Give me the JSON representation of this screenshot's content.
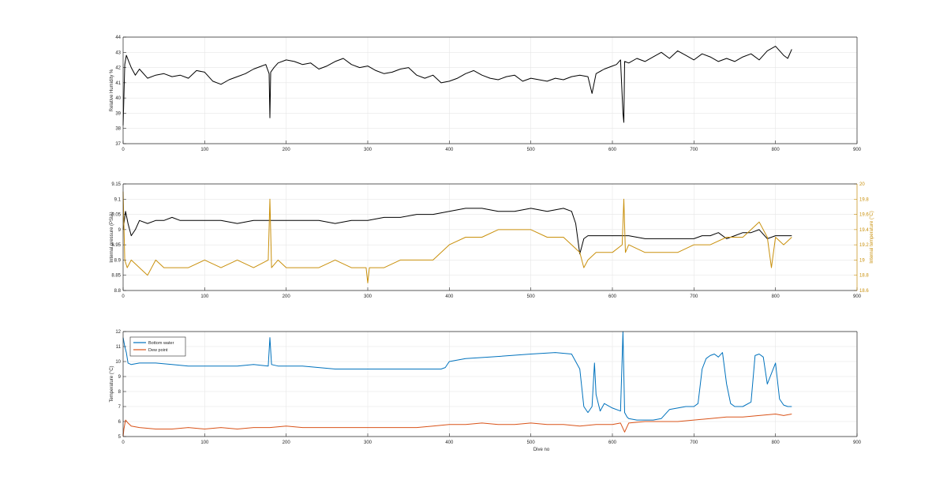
{
  "chart_data": [
    {
      "type": "line",
      "title": "",
      "xlabel": "",
      "ylabel": "Relative Humidity %",
      "xlim": [
        0,
        900
      ],
      "ylim": [
        37,
        44
      ],
      "xticks": [
        "0",
        "100",
        "200",
        "300",
        "400",
        "500",
        "600",
        "700",
        "800",
        "900"
      ],
      "yticks": [
        "37",
        "38",
        "39",
        "40",
        "41",
        "42",
        "43",
        "44"
      ],
      "grid": true,
      "series": [
        {
          "color": "#000000",
          "x": [
            0,
            2,
            4,
            7,
            10,
            15,
            20,
            30,
            40,
            50,
            60,
            70,
            80,
            90,
            100,
            110,
            120,
            130,
            140,
            150,
            160,
            170,
            175,
            179,
            180,
            181,
            185,
            190,
            200,
            210,
            220,
            230,
            240,
            250,
            260,
            270,
            280,
            290,
            300,
            310,
            320,
            330,
            340,
            350,
            360,
            370,
            380,
            390,
            400,
            410,
            420,
            430,
            440,
            450,
            460,
            470,
            480,
            490,
            500,
            510,
            520,
            530,
            540,
            550,
            560,
            570,
            575,
            580,
            590,
            600,
            605,
            610,
            613,
            614,
            615,
            620,
            630,
            640,
            650,
            660,
            670,
            680,
            690,
            700,
            710,
            720,
            730,
            740,
            750,
            760,
            770,
            780,
            790,
            800,
            810,
            815,
            820
          ],
          "y": [
            38.2,
            42.2,
            42.8,
            42.4,
            42.0,
            41.5,
            41.9,
            41.3,
            41.5,
            41.6,
            41.4,
            41.5,
            41.3,
            41.8,
            41.7,
            41.1,
            40.9,
            41.2,
            41.4,
            41.6,
            41.9,
            42.1,
            42.2,
            41.6,
            38.7,
            41.7,
            42.0,
            42.3,
            42.5,
            42.4,
            42.2,
            42.3,
            41.9,
            42.1,
            42.4,
            42.6,
            42.2,
            42.0,
            42.1,
            41.8,
            41.6,
            41.7,
            41.9,
            42.0,
            41.5,
            41.3,
            41.5,
            41.0,
            41.1,
            41.3,
            41.6,
            41.8,
            41.5,
            41.3,
            41.2,
            41.4,
            41.5,
            41.1,
            41.3,
            41.2,
            41.1,
            41.3,
            41.2,
            41.4,
            41.5,
            41.4,
            40.3,
            41.6,
            41.9,
            42.1,
            42.2,
            42.5,
            39.0,
            38.4,
            42.4,
            42.3,
            42.6,
            42.4,
            42.7,
            43.0,
            42.6,
            43.1,
            42.8,
            42.5,
            42.9,
            42.7,
            42.4,
            42.6,
            42.4,
            42.7,
            42.9,
            42.5,
            43.1,
            43.4,
            42.8,
            42.6,
            43.2
          ]
        }
      ]
    },
    {
      "type": "line",
      "title": "",
      "xlabel": "",
      "ylabel": "Internal pressure (PSIA)",
      "ylabel_right": "Internal temperature (°C)",
      "xlim": [
        0,
        900
      ],
      "ylim": [
        8.8,
        9.15
      ],
      "ylim_right": [
        18.6,
        20
      ],
      "xticks": [
        "0",
        "100",
        "200",
        "300",
        "400",
        "500",
        "600",
        "700",
        "800",
        "900"
      ],
      "yticks": [
        "8.8",
        "8.85",
        "8.9",
        "8.95",
        "9",
        "9.05",
        "9.1",
        "9.15"
      ],
      "yticks_right": [
        "18.6",
        "18.8",
        "19",
        "19.2",
        "19.4",
        "19.6",
        "19.8",
        "20"
      ],
      "grid": true,
      "series": [
        {
          "axis": "left",
          "color": "#000000",
          "x": [
            0,
            3,
            6,
            10,
            15,
            20,
            30,
            40,
            50,
            60,
            70,
            80,
            90,
            100,
            120,
            140,
            160,
            180,
            200,
            220,
            240,
            260,
            280,
            300,
            320,
            340,
            360,
            380,
            400,
            420,
            440,
            460,
            480,
            500,
            520,
            540,
            550,
            555,
            558,
            560,
            565,
            570,
            580,
            600,
            620,
            640,
            660,
            680,
            700,
            710,
            720,
            730,
            740,
            750,
            760,
            770,
            780,
            790,
            800,
            810,
            820
          ],
          "y": [
            9.0,
            9.06,
            9.02,
            8.98,
            9.0,
            9.03,
            9.02,
            9.03,
            9.03,
            9.04,
            9.03,
            9.03,
            9.03,
            9.03,
            9.03,
            9.02,
            9.03,
            9.03,
            9.03,
            9.03,
            9.03,
            9.02,
            9.03,
            9.03,
            9.04,
            9.04,
            9.05,
            9.05,
            9.06,
            9.07,
            9.07,
            9.06,
            9.06,
            9.07,
            9.06,
            9.07,
            9.06,
            9.02,
            8.96,
            8.92,
            8.97,
            8.98,
            8.98,
            8.98,
            8.98,
            8.97,
            8.97,
            8.97,
            8.97,
            8.98,
            8.98,
            8.99,
            8.97,
            8.98,
            8.99,
            8.99,
            9.0,
            8.97,
            8.98,
            8.98,
            8.98
          ]
        },
        {
          "axis": "right",
          "color": "#c9900c",
          "x": [
            0,
            2,
            5,
            10,
            20,
            30,
            40,
            50,
            60,
            80,
            100,
            120,
            140,
            160,
            178,
            180,
            182,
            190,
            200,
            220,
            240,
            260,
            280,
            298,
            300,
            302,
            320,
            340,
            360,
            380,
            400,
            420,
            440,
            460,
            480,
            500,
            520,
            540,
            550,
            560,
            565,
            570,
            580,
            600,
            612,
            614,
            616,
            620,
            640,
            660,
            680,
            700,
            720,
            740,
            760,
            770,
            780,
            790,
            795,
            800,
            810,
            820
          ],
          "y": [
            19.9,
            19.0,
            18.9,
            19.0,
            18.9,
            18.8,
            19.0,
            18.9,
            18.9,
            18.9,
            19.0,
            18.9,
            19.0,
            18.9,
            19.0,
            19.8,
            18.9,
            19.0,
            18.9,
            18.9,
            18.9,
            19.0,
            18.9,
            18.9,
            18.7,
            18.9,
            18.9,
            19.0,
            19.0,
            19.0,
            19.2,
            19.3,
            19.3,
            19.4,
            19.4,
            19.4,
            19.3,
            19.3,
            19.2,
            19.1,
            18.9,
            19.0,
            19.1,
            19.1,
            19.2,
            19.8,
            19.1,
            19.2,
            19.1,
            19.1,
            19.1,
            19.2,
            19.2,
            19.3,
            19.3,
            19.4,
            19.5,
            19.3,
            18.9,
            19.3,
            19.2,
            19.3
          ]
        }
      ]
    },
    {
      "type": "line",
      "title": "",
      "xlabel": "Dive no",
      "ylabel": "Temperature (°C)",
      "xlim": [
        0,
        900
      ],
      "ylim": [
        5,
        12
      ],
      "xticks": [
        "0",
        "100",
        "200",
        "300",
        "400",
        "500",
        "600",
        "700",
        "800",
        "900"
      ],
      "yticks": [
        "5",
        "6",
        "7",
        "8",
        "9",
        "10",
        "11",
        "12"
      ],
      "grid": true,
      "legend_placement": "top-left",
      "series": [
        {
          "name": "Bottom water",
          "color": "#0072bd",
          "x": [
            0,
            2,
            4,
            6,
            10,
            20,
            40,
            60,
            80,
            100,
            120,
            140,
            160,
            178,
            180,
            182,
            190,
            200,
            220,
            240,
            260,
            280,
            300,
            320,
            340,
            360,
            380,
            390,
            395,
            400,
            420,
            450,
            500,
            530,
            550,
            560,
            565,
            570,
            575,
            578,
            580,
            585,
            590,
            600,
            610,
            613,
            615,
            618,
            620,
            630,
            650,
            660,
            670,
            680,
            690,
            700,
            705,
            710,
            715,
            720,
            725,
            730,
            735,
            740,
            745,
            750,
            760,
            770,
            775,
            780,
            785,
            790,
            795,
            800,
            805,
            810,
            815,
            820
          ],
          "y": [
            11.6,
            11.0,
            10.6,
            9.9,
            9.8,
            9.9,
            9.9,
            9.8,
            9.7,
            9.7,
            9.7,
            9.7,
            9.8,
            9.7,
            11.6,
            9.8,
            9.7,
            9.7,
            9.7,
            9.6,
            9.5,
            9.5,
            9.5,
            9.5,
            9.5,
            9.5,
            9.5,
            9.5,
            9.6,
            10.0,
            10.2,
            10.3,
            10.5,
            10.6,
            10.5,
            9.5,
            7.0,
            6.6,
            7.0,
            9.9,
            7.8,
            6.7,
            7.2,
            6.9,
            6.7,
            12.0,
            6.6,
            6.3,
            6.2,
            6.1,
            6.1,
            6.2,
            6.8,
            6.9,
            7.0,
            7.0,
            7.2,
            9.5,
            10.2,
            10.4,
            10.5,
            10.3,
            10.6,
            8.5,
            7.2,
            7.0,
            7.0,
            7.3,
            10.4,
            10.5,
            10.3,
            8.5,
            9.2,
            9.9,
            7.5,
            7.1,
            7.0,
            7.0
          ]
        },
        {
          "name": "Dew point",
          "color": "#d95319",
          "x": [
            0,
            1,
            3,
            6,
            10,
            20,
            40,
            60,
            80,
            100,
            120,
            140,
            160,
            180,
            200,
            220,
            240,
            260,
            280,
            300,
            320,
            340,
            360,
            380,
            400,
            420,
            440,
            460,
            480,
            500,
            520,
            540,
            560,
            580,
            600,
            610,
            615,
            620,
            640,
            660,
            680,
            700,
            720,
            740,
            760,
            780,
            800,
            810,
            820
          ],
          "y": [
            5.0,
            5.5,
            6.1,
            5.9,
            5.7,
            5.6,
            5.5,
            5.5,
            5.6,
            5.5,
            5.6,
            5.5,
            5.6,
            5.6,
            5.7,
            5.6,
            5.6,
            5.6,
            5.6,
            5.6,
            5.6,
            5.6,
            5.6,
            5.7,
            5.8,
            5.8,
            5.9,
            5.8,
            5.8,
            5.9,
            5.8,
            5.8,
            5.7,
            5.8,
            5.8,
            5.9,
            5.3,
            5.9,
            6.0,
            6.0,
            6.0,
            6.1,
            6.2,
            6.3,
            6.3,
            6.4,
            6.5,
            6.4,
            6.5
          ]
        }
      ]
    }
  ]
}
